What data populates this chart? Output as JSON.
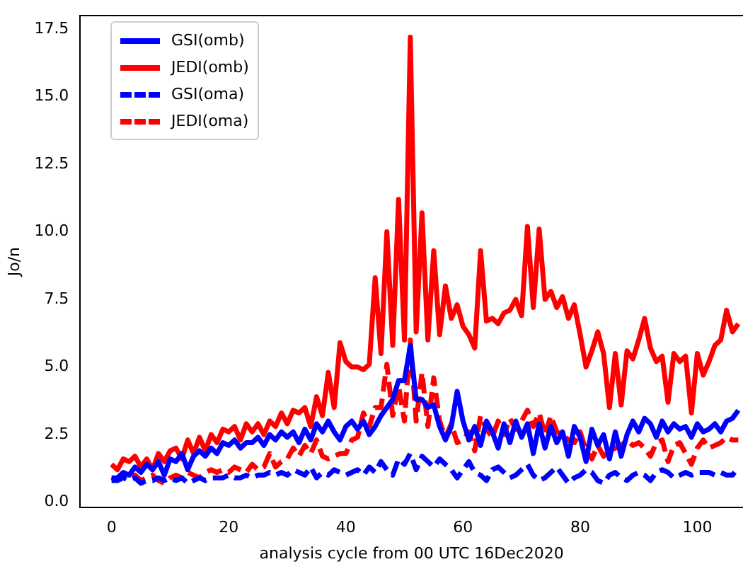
{
  "chart_data": {
    "type": "line",
    "xlabel": "analysis cycle from 00 UTC 16Dec2020",
    "ylabel": "Jo/n",
    "x": [
      0,
      1,
      2,
      3,
      4,
      5,
      6,
      7,
      8,
      9,
      10,
      11,
      12,
      13,
      14,
      15,
      16,
      17,
      18,
      19,
      20,
      21,
      22,
      23,
      24,
      25,
      26,
      27,
      28,
      29,
      30,
      31,
      32,
      33,
      34,
      35,
      36,
      37,
      38,
      39,
      40,
      41,
      42,
      43,
      44,
      45,
      46,
      47,
      48,
      49,
      50,
      51,
      52,
      53,
      54,
      55,
      56,
      57,
      58,
      59,
      60,
      61,
      62,
      63,
      64,
      65,
      66,
      67,
      68,
      69,
      70,
      71,
      72,
      73,
      74,
      75,
      76,
      77,
      78,
      79,
      80,
      81,
      82,
      83,
      84,
      85,
      86,
      87,
      88,
      89,
      90,
      91,
      92,
      93,
      94,
      95,
      96,
      97,
      98,
      99,
      100,
      101,
      102,
      103,
      104,
      105,
      106,
      107
    ],
    "series": [
      {
        "name": "GSI(omb)",
        "color": "#0000ff",
        "line_style": "solid",
        "values": [
          0.9,
          0.9,
          1.1,
          1.0,
          1.3,
          1.1,
          1.4,
          1.2,
          1.5,
          1.0,
          1.6,
          1.5,
          1.8,
          1.2,
          1.7,
          1.9,
          1.7,
          2.0,
          1.8,
          2.2,
          2.1,
          2.3,
          2.0,
          2.2,
          2.2,
          2.4,
          2.1,
          2.5,
          2.3,
          2.6,
          2.4,
          2.6,
          2.2,
          2.7,
          2.3,
          2.9,
          2.6,
          3.0,
          2.6,
          2.3,
          2.8,
          3.0,
          2.7,
          3.0,
          2.5,
          2.8,
          3.2,
          3.5,
          3.8,
          4.5,
          4.5,
          5.8,
          3.8,
          3.8,
          3.5,
          3.6,
          2.8,
          2.3,
          2.8,
          4.1,
          3.0,
          2.3,
          2.8,
          2.1,
          3.0,
          2.6,
          2.0,
          2.9,
          2.2,
          3.0,
          2.4,
          2.9,
          1.8,
          2.9,
          2.0,
          2.8,
          2.2,
          2.6,
          1.7,
          2.8,
          2.4,
          1.5,
          2.7,
          2.1,
          2.5,
          1.6,
          2.6,
          1.7,
          2.5,
          3.0,
          2.6,
          3.1,
          2.9,
          2.4,
          3.0,
          2.6,
          2.9,
          2.7,
          2.8,
          2.4,
          2.9,
          2.6,
          2.7,
          2.9,
          2.6,
          3.0,
          3.1,
          3.4
        ]
      },
      {
        "name": "JEDI(omb)",
        "color": "#ff0000",
        "line_style": "solid",
        "values": [
          1.4,
          1.2,
          1.6,
          1.5,
          1.7,
          1.3,
          1.6,
          1.2,
          1.8,
          1.5,
          1.9,
          2.0,
          1.6,
          2.3,
          1.8,
          2.4,
          1.9,
          2.5,
          2.2,
          2.7,
          2.6,
          2.8,
          2.3,
          2.9,
          2.6,
          2.9,
          2.5,
          3.0,
          2.8,
          3.3,
          2.9,
          3.4,
          3.3,
          3.5,
          2.8,
          3.9,
          3.2,
          4.8,
          3.5,
          5.9,
          5.2,
          5.0,
          5.0,
          4.9,
          5.1,
          8.3,
          5.5,
          10.0,
          5.8,
          11.2,
          6.0,
          17.2,
          6.3,
          10.7,
          6.0,
          9.3,
          6.2,
          8.0,
          6.8,
          7.3,
          6.5,
          6.2,
          5.7,
          9.3,
          6.7,
          6.8,
          6.6,
          7.0,
          7.1,
          7.5,
          6.9,
          10.2,
          7.2,
          10.1,
          7.5,
          7.8,
          7.2,
          7.6,
          6.8,
          7.3,
          6.2,
          5.0,
          5.6,
          6.3,
          5.5,
          3.5,
          5.5,
          3.6,
          5.6,
          5.3,
          6.0,
          6.8,
          5.7,
          5.2,
          5.4,
          3.7,
          5.5,
          5.2,
          5.4,
          3.3,
          5.5,
          4.7,
          5.2,
          5.8,
          6.0,
          7.1,
          6.3,
          6.6
        ]
      },
      {
        "name": "GSI(oma)",
        "color": "#0000ff",
        "line_style": "dashed",
        "values": [
          0.8,
          0.8,
          0.9,
          0.8,
          0.9,
          0.7,
          0.8,
          0.8,
          0.9,
          0.8,
          0.9,
          0.8,
          0.9,
          0.7,
          0.8,
          0.9,
          0.8,
          0.9,
          0.9,
          0.9,
          1.0,
          0.9,
          0.9,
          1.0,
          0.9,
          1.0,
          1.0,
          1.1,
          1.0,
          1.1,
          1.0,
          1.2,
          1.1,
          1.0,
          1.3,
          0.9,
          1.1,
          1.0,
          1.2,
          1.1,
          1.0,
          1.1,
          1.2,
          1.0,
          1.3,
          1.1,
          1.5,
          1.2,
          1.0,
          1.6,
          1.4,
          1.8,
          1.2,
          1.7,
          1.5,
          1.3,
          1.6,
          1.4,
          1.2,
          0.9,
          1.2,
          1.5,
          1.1,
          1.0,
          0.8,
          1.2,
          1.3,
          1.1,
          0.9,
          1.0,
          1.2,
          1.4,
          1.0,
          0.8,
          0.9,
          1.1,
          1.3,
          1.0,
          0.7,
          0.9,
          1.0,
          1.2,
          1.1,
          0.8,
          0.7,
          1.0,
          1.1,
          0.9,
          0.8,
          1.0,
          1.1,
          1.0,
          0.8,
          1.1,
          1.2,
          1.1,
          0.9,
          1.0,
          1.1,
          1.0,
          1.1,
          1.1,
          1.1,
          1.0,
          1.1,
          1.0,
          1.0,
          1.3
        ]
      },
      {
        "name": "JEDI(oma)",
        "color": "#ff0000",
        "line_style": "dashed",
        "values": [
          0.8,
          0.9,
          1.0,
          0.9,
          1.0,
          0.8,
          0.9,
          1.0,
          0.8,
          0.7,
          0.9,
          1.0,
          0.9,
          1.1,
          1.0,
          0.9,
          1.1,
          1.2,
          1.1,
          1.2,
          1.1,
          1.3,
          1.2,
          1.1,
          1.4,
          1.2,
          1.3,
          1.8,
          1.3,
          1.5,
          1.6,
          2.0,
          1.7,
          2.1,
          1.8,
          2.3,
          1.7,
          1.6,
          1.7,
          1.8,
          1.8,
          2.3,
          2.4,
          3.3,
          2.8,
          3.5,
          3.5,
          5.1,
          3.2,
          4.3,
          3.0,
          6.0,
          3.0,
          4.8,
          2.8,
          4.6,
          3.0,
          2.4,
          2.9,
          2.2,
          2.3,
          2.6,
          1.9,
          3.2,
          2.7,
          2.4,
          3.0,
          2.5,
          3.1,
          2.7,
          3.0,
          3.4,
          2.8,
          3.3,
          2.5,
          3.2,
          2.6,
          2.5,
          2.3,
          2.2,
          2.6,
          1.9,
          1.6,
          2.1,
          1.7,
          1.9,
          2.0,
          2.1,
          2.3,
          2.1,
          2.2,
          2.0,
          1.7,
          2.2,
          2.3,
          1.5,
          2.1,
          2.2,
          1.8,
          1.4,
          2.0,
          2.3,
          2.0,
          2.1,
          2.2,
          2.4,
          2.3,
          2.3
        ]
      }
    ],
    "xlim": [
      -5.35,
      107.8
    ],
    "ylim": [
      -0.2,
      18.0
    ],
    "xticks": [
      0,
      20,
      40,
      60,
      80,
      100
    ],
    "yticks": [
      {
        "value": 0,
        "label": "0.0"
      },
      2.5,
      {
        "value": 5,
        "label": "5.0"
      },
      7.5,
      {
        "value": 10,
        "label": "10.0"
      },
      12.5,
      {
        "value": 15,
        "label": "15.0"
      },
      17.5
    ],
    "grid": false,
    "legend": "top left",
    "marker": "none"
  }
}
